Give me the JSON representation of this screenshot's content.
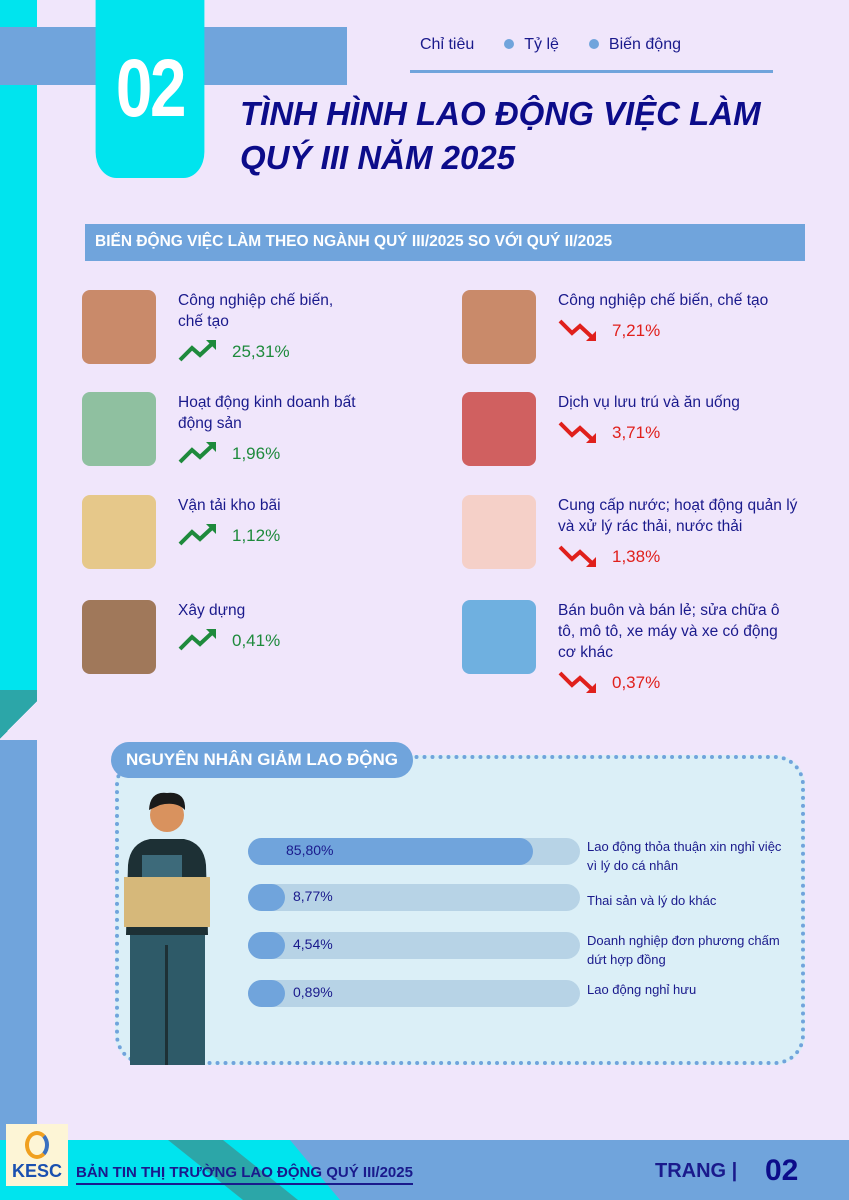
{
  "header": {
    "section_number": "02",
    "legend": [
      "Chỉ tiêu",
      "Tỷ lệ",
      "Biến động"
    ],
    "title_line1": "TÌNH HÌNH LAO ĐỘNG VIỆC LÀM",
    "title_line2": "QUÝ III NĂM 2025"
  },
  "sectors": {
    "title": "BIẾN ĐỘNG VIỆC LÀM THEO NGÀNH QUÝ III/2025 SO VỚI QUÝ II/2025",
    "increase": [
      {
        "label": "Công nghiệp chế biến, chế tạo",
        "value": "25,31%",
        "icon": "factory-icon"
      },
      {
        "label": "Hoạt động kinh doanh bất động sản",
        "value": "1,96%",
        "icon": "real-estate-icon"
      },
      {
        "label": "Vận tải kho bãi",
        "value": "1,12%",
        "icon": "logistics-icon"
      },
      {
        "label": "Xây dựng",
        "value": "0,41%",
        "icon": "construction-icon"
      }
    ],
    "decrease": [
      {
        "label": "Công nghiệp chế biến, chế tạo",
        "value": "7,21%",
        "icon": "factory-icon"
      },
      {
        "label": "Dịch vụ lưu trú và ăn uống",
        "value": "3,71%",
        "icon": "hotel-icon"
      },
      {
        "label": "Cung cấp nước; hoạt động quản lý và xử lý rác thải, nước thải",
        "value": "1,38%",
        "icon": "waste-icon"
      },
      {
        "label": "Bán buôn và bán lẻ; sửa chữa ô tô, mô tô, xe máy và xe có động cơ khác",
        "value": "0,37%",
        "icon": "retail-icon"
      }
    ],
    "colors": {
      "up": "#1e8a3c",
      "down": "#e0201c"
    }
  },
  "reasons": {
    "title": "NGUYÊN NHÂN GIẢM LAO ĐỘNG",
    "items": [
      {
        "label": "Lao động thỏa thuận xin nghỉ việc vì lý do cá nhân",
        "value": "85,80%",
        "percent": 85.8
      },
      {
        "label": "Thai sản và lý do khác",
        "value": "8,77%",
        "percent": 8.77
      },
      {
        "label": "Doanh nghiệp đơn phương chấm dứt hợp đồng",
        "value": "4,54%",
        "percent": 4.54
      },
      {
        "label": "Lao động nghỉ hưu",
        "value": "0,89%",
        "percent": 0.89
      }
    ]
  },
  "footer": {
    "logo_text": "KESC",
    "title": "BẢN TIN THỊ TRƯỜNG LAO ĐỘNG QUÝ III/2025",
    "page_label": "TRANG |",
    "page_number": "02"
  }
}
